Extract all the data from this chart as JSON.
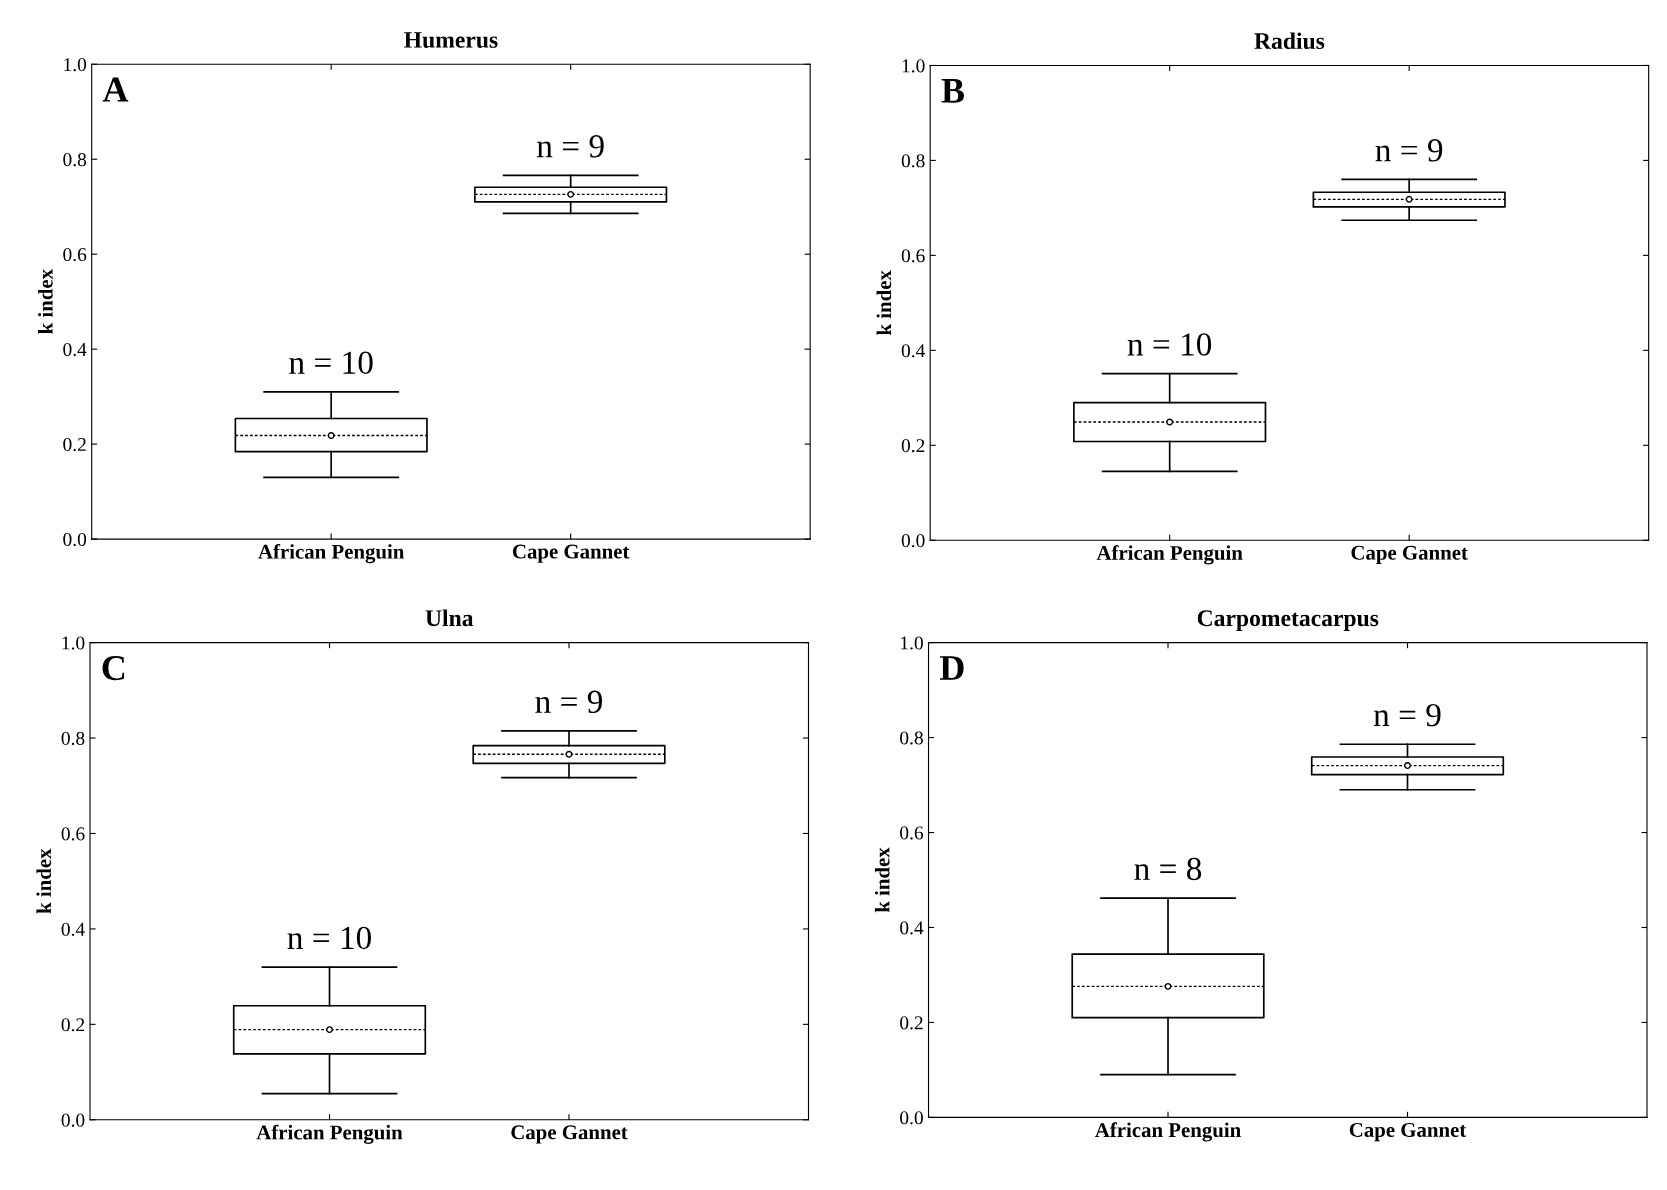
{
  "chart_data": [
    {
      "type": "box",
      "title": "Humerus",
      "ylabel": "k index",
      "categories": [
        "African Penguin",
        "Cape Gannet"
      ],
      "ylim": [
        0,
        1
      ],
      "yticks": [
        {
          "value": 0,
          "label": "0.0"
        },
        {
          "value": 0.2,
          "label": "0.2"
        },
        {
          "value": 0.4,
          "label": "0.4"
        },
        {
          "value": 0.6,
          "label": "0.6"
        },
        {
          "value": 0.8,
          "label": "0.8"
        },
        {
          "value": 1,
          "label": "1.0"
        }
      ],
      "grid": false,
      "boxes": [
        {
          "low": 0.13,
          "q1": 0.184,
          "median": 0.218,
          "q3": 0.254,
          "high": 0.31,
          "mean": 0.218
        },
        {
          "low": 0.686,
          "q1": 0.71,
          "median": 0.726,
          "q3": 0.741,
          "high": 0.766,
          "mean": 0.726
        }
      ],
      "annotations": [
        "A",
        "n = 10",
        "n = 9"
      ]
    },
    {
      "type": "box",
      "title": "Radius",
      "ylabel": "k index",
      "categories": [
        "African Penguin",
        "Cape Gannet"
      ],
      "ylim": [
        0,
        1
      ],
      "yticks": [
        {
          "value": 0,
          "label": "0.0"
        },
        {
          "value": 0.2,
          "label": "0.2"
        },
        {
          "value": 0.4,
          "label": "0.4"
        },
        {
          "value": 0.6,
          "label": "0.6"
        },
        {
          "value": 0.8,
          "label": "0.8"
        },
        {
          "value": 1,
          "label": "1.0"
        }
      ],
      "grid": false,
      "boxes": [
        {
          "low": 0.145,
          "q1": 0.208,
          "median": 0.249,
          "q3": 0.29,
          "high": 0.351,
          "mean": 0.249
        },
        {
          "low": 0.674,
          "q1": 0.702,
          "median": 0.718,
          "q3": 0.733,
          "high": 0.76,
          "mean": 0.718
        }
      ],
      "annotations": [
        "B",
        "n = 10",
        "n = 9"
      ]
    },
    {
      "type": "box",
      "title": "Ulna",
      "ylabel": "k index",
      "categories": [
        "African Penguin",
        "Cape Gannet"
      ],
      "ylim": [
        0,
        1
      ],
      "yticks": [
        {
          "value": 0,
          "label": "0.0"
        },
        {
          "value": 0.2,
          "label": "0.2"
        },
        {
          "value": 0.4,
          "label": "0.4"
        },
        {
          "value": 0.6,
          "label": "0.6"
        },
        {
          "value": 0.8,
          "label": "0.8"
        },
        {
          "value": 1,
          "label": "1.0"
        }
      ],
      "grid": false,
      "boxes": [
        {
          "low": 0.055,
          "q1": 0.138,
          "median": 0.189,
          "q3": 0.239,
          "high": 0.32,
          "mean": 0.189
        },
        {
          "low": 0.717,
          "q1": 0.747,
          "median": 0.766,
          "q3": 0.784,
          "high": 0.815,
          "mean": 0.766
        }
      ],
      "annotations": [
        "C",
        "n = 10",
        "n = 9"
      ]
    },
    {
      "type": "box",
      "title": "Carpometacarpus",
      "ylabel": "k index",
      "categories": [
        "African Penguin",
        "Cape Gannet"
      ],
      "ylim": [
        0,
        1
      ],
      "yticks": [
        {
          "value": 0,
          "label": "0.0"
        },
        {
          "value": 0.2,
          "label": "0.2"
        },
        {
          "value": 0.4,
          "label": "0.4"
        },
        {
          "value": 0.6,
          "label": "0.6"
        },
        {
          "value": 0.8,
          "label": "0.8"
        },
        {
          "value": 1,
          "label": "1.0"
        }
      ],
      "grid": false,
      "boxes": [
        {
          "low": 0.09,
          "q1": 0.21,
          "median": 0.276,
          "q3": 0.344,
          "high": 0.462,
          "mean": 0.276
        },
        {
          "low": 0.69,
          "q1": 0.722,
          "median": 0.741,
          "q3": 0.759,
          "high": 0.786,
          "mean": 0.741
        }
      ],
      "annotations": [
        "D",
        "n = 8",
        "n = 9"
      ]
    }
  ]
}
